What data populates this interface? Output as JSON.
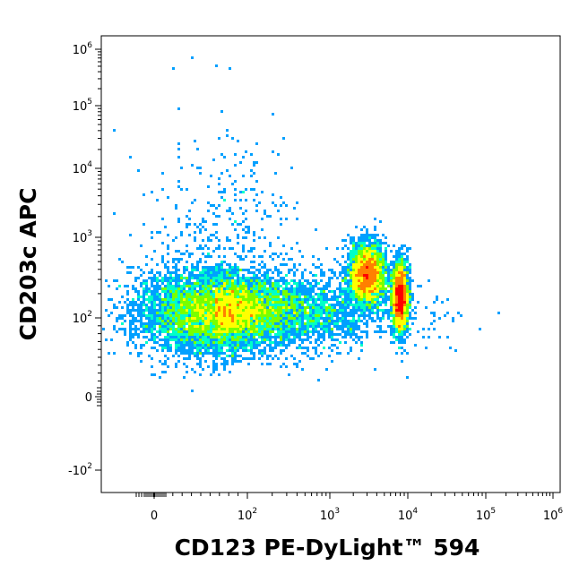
{
  "chart_data": {
    "type": "scatter",
    "subtype": "flow-cytometry density plot (pseudocolor dot plot)",
    "xlabel": "CD123 PE-DyLight™ 594",
    "ylabel": "CD203c APC",
    "x_scale": "biexponential (log with linear region around 0)",
    "y_scale": "biexponential (log with linear region around 0)",
    "x_ticks": [
      {
        "label": "0",
        "value": 0
      },
      {
        "label": "10",
        "exp": "2",
        "value": 100
      },
      {
        "label": "10",
        "exp": "3",
        "value": 1000
      },
      {
        "label": "10",
        "exp": "4",
        "value": 10000
      },
      {
        "label": "10",
        "exp": "5",
        "value": 100000
      },
      {
        "label": "10",
        "exp": "6",
        "value": 1000000
      }
    ],
    "y_ticks": [
      {
        "label": "-10",
        "exp": "2",
        "value": -100
      },
      {
        "label": "0",
        "value": 0
      },
      {
        "label": "10",
        "exp": "2",
        "value": 100
      },
      {
        "label": "10",
        "exp": "3",
        "value": 1000
      },
      {
        "label": "10",
        "exp": "4",
        "value": 10000
      },
      {
        "label": "10",
        "exp": "5",
        "value": 100000
      },
      {
        "label": "10",
        "exp": "6",
        "value": 1000000
      }
    ],
    "grid": false,
    "legend": "none",
    "colormap": [
      "#0000ff",
      "#00a0ff",
      "#00ffc8",
      "#78ff00",
      "#ffff00",
      "#ff8000",
      "#ff0000"
    ],
    "populations": [
      {
        "id": "main",
        "x_center": 55,
        "y_center": 120,
        "x_range": [
          0,
          1000
        ],
        "y_range": [
          20,
          400
        ],
        "relative_density": 1.0
      },
      {
        "id": "CD123-high",
        "x_center": 3000,
        "y_center": 350,
        "x_range": [
          1500,
          6000
        ],
        "y_range": [
          100,
          1000
        ],
        "relative_density": 0.35
      },
      {
        "id": "CD123-very-high",
        "x_center": 8000,
        "y_center": 180,
        "x_range": [
          6000,
          11000
        ],
        "y_range": [
          50,
          400
        ],
        "relative_density": 0.3
      }
    ]
  }
}
